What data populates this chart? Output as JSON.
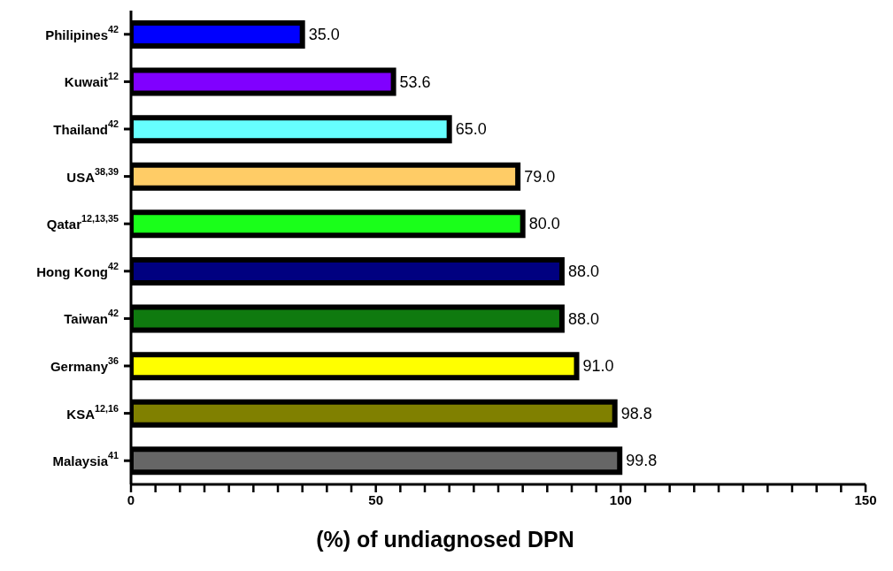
{
  "chart_data": {
    "type": "bar",
    "orientation": "horizontal",
    "xlabel": "(%) of undiagnosed DPN",
    "categories": [
      "Philipines$^{42}$",
      "Kuwait$^{12}$",
      "Thailand$^{42}$",
      "USA$^{38,39}$",
      "Qatar$^{12,13,35}$",
      "Hong Kong$^{42}$",
      "Taiwan$^{42}$",
      "Germany$^{36}$",
      "KSA$^{12,16}$",
      "Malaysia$^{41}$"
    ],
    "values": [
      35.0,
      53.6,
      65.0,
      79.0,
      80.0,
      88.0,
      88.0,
      91.0,
      98.8,
      99.8
    ],
    "value_labels": [
      "35.0",
      "53.6",
      "65.0",
      "79.0",
      "80.0",
      "88.0",
      "88.0",
      "91.0",
      "98.8",
      "99.8"
    ],
    "colors": [
      "#0000ff",
      "#8000ff",
      "#66ffff",
      "#ffcc66",
      "#1aff1a",
      "#000080",
      "#0f7a0f",
      "#ffff00",
      "#808000",
      "#666666"
    ],
    "xlim": [
      0,
      150
    ],
    "xticks": [
      0,
      {
        "value": 5,
        "label": null
      },
      {
        "value": 10,
        "label": null
      },
      {
        "value": 15,
        "label": null
      },
      {
        "value": 20,
        "label": null
      },
      {
        "value": 25,
        "label": null
      },
      {
        "value": 30,
        "label": null
      },
      {
        "value": 35,
        "label": null
      },
      {
        "value": 40,
        "label": null
      },
      {
        "value": 45,
        "label": null
      },
      50,
      {
        "value": 55,
        "label": null
      },
      {
        "value": 60,
        "label": null
      },
      {
        "value": 65,
        "label": null
      },
      {
        "value": 70,
        "label": null
      },
      {
        "value": 75,
        "label": null
      },
      {
        "value": 80,
        "label": null
      },
      {
        "value": 85,
        "label": null
      },
      {
        "value": 90,
        "label": null
      },
      {
        "value": 95,
        "label": null
      },
      100,
      {
        "value": 105,
        "label": null
      },
      {
        "value": 110,
        "label": null
      },
      {
        "value": 115,
        "label": null
      },
      {
        "value": 120,
        "label": null
      },
      {
        "value": 125,
        "label": null
      },
      {
        "value": 130,
        "label": null
      },
      {
        "value": 135,
        "label": null
      },
      {
        "value": 140,
        "label": null
      },
      {
        "value": 145,
        "label": null
      },
      150
    ],
    "grid": false,
    "legend": false
  }
}
